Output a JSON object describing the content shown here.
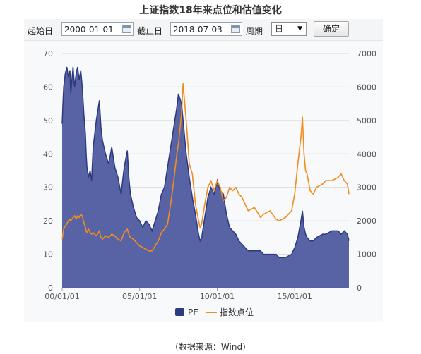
{
  "title": "上证指数18年来点位和估值变化",
  "controls": {
    "start_label": "起始日",
    "start_value": "2000-01-01",
    "end_label": "截止日",
    "end_value": "2018-07-03",
    "period_label": "周期",
    "period_value": "日",
    "confirm_label": "确定",
    "calendar_icon": "calendar-icon",
    "dropdown_icon": "chevron-down-icon"
  },
  "source_note": "（数据来源：Wind）",
  "colors": {
    "pe_fill": "#4e5b9f",
    "pe_line": "#2c3a7e",
    "index_line": "#f28c1f",
    "grid": "#d6d8dc",
    "axis_text": "#555555"
  },
  "chart_data": {
    "type": "area",
    "x_unit": "year",
    "x": [
      2000.0,
      2000.05,
      2000.1,
      2000.2,
      2000.3,
      2000.4,
      2000.5,
      2000.55,
      2000.7,
      2000.8,
      2000.9,
      2001.0,
      2001.1,
      2001.2,
      2001.3,
      2001.4,
      2001.5,
      2001.55,
      2001.6,
      2001.7,
      2001.8,
      2001.9,
      2002.0,
      2002.2,
      2002.4,
      2002.5,
      2002.6,
      2002.8,
      2003.0,
      2003.2,
      2003.4,
      2003.6,
      2003.8,
      2004.0,
      2004.2,
      2004.3,
      2004.4,
      2004.6,
      2004.8,
      2005.0,
      2005.2,
      2005.4,
      2005.6,
      2005.8,
      2006.0,
      2006.2,
      2006.4,
      2006.6,
      2006.8,
      2007.0,
      2007.2,
      2007.4,
      2007.5,
      2007.7,
      2007.8,
      2008.0,
      2008.2,
      2008.4,
      2008.6,
      2008.8,
      2008.9,
      2009.0,
      2009.2,
      2009.4,
      2009.6,
      2009.8,
      2010.0,
      2010.2,
      2010.4,
      2010.6,
      2010.8,
      2011.0,
      2011.2,
      2011.4,
      2011.6,
      2011.8,
      2012.0,
      2012.4,
      2012.8,
      2013.0,
      2013.4,
      2013.8,
      2014.0,
      2014.4,
      2014.8,
      2015.0,
      2015.2,
      2015.4,
      2015.5,
      2015.6,
      2015.7,
      2015.8,
      2016.0,
      2016.2,
      2016.4,
      2016.8,
      2017.0,
      2017.4,
      2017.8,
      2018.0,
      2018.2,
      2018.4,
      2018.5
    ],
    "series": [
      {
        "name": "PE",
        "axis": "left",
        "values": [
          49,
          55,
          60,
          64,
          66,
          63,
          65,
          58,
          66,
          60,
          64,
          66,
          62,
          65,
          60,
          52,
          46,
          40,
          36,
          33,
          35,
          32,
          42,
          50,
          56,
          48,
          44,
          40,
          37,
          42,
          36,
          33,
          28,
          36,
          41,
          33,
          28,
          24,
          21,
          20,
          18,
          20,
          19,
          17,
          20,
          23,
          28,
          30,
          36,
          42,
          48,
          54,
          58,
          55,
          50,
          40,
          33,
          27,
          22,
          16,
          14,
          15,
          21,
          27,
          30,
          28,
          32,
          29,
          28,
          22,
          18,
          17,
          16,
          14,
          13,
          12,
          11,
          11,
          11,
          10,
          10,
          10,
          9,
          9,
          10,
          12,
          15,
          20,
          23,
          18,
          16,
          15,
          14,
          14,
          15,
          16,
          16,
          17,
          17,
          16,
          17,
          16,
          14
        ]
      },
      {
        "name": "指数点位",
        "axis": "right",
        "values": [
          1450,
          1600,
          1750,
          1850,
          1900,
          2000,
          2050,
          2000,
          2100,
          2150,
          2050,
          2150,
          2100,
          2200,
          2150,
          1950,
          1800,
          1700,
          1650,
          1750,
          1650,
          1600,
          1650,
          1550,
          1700,
          1500,
          1450,
          1550,
          1500,
          1600,
          1550,
          1450,
          1400,
          1650,
          1750,
          1600,
          1500,
          1450,
          1350,
          1250,
          1200,
          1150,
          1100,
          1100,
          1250,
          1400,
          1650,
          1750,
          1900,
          2500,
          3200,
          4000,
          4300,
          5200,
          6100,
          5000,
          3700,
          3400,
          2500,
          2000,
          1800,
          1900,
          2500,
          3000,
          3200,
          2900,
          3200,
          3000,
          2600,
          2700,
          3000,
          2900,
          3000,
          2800,
          2700,
          2500,
          2300,
          2400,
          2100,
          2200,
          2300,
          2050,
          2000,
          2100,
          2300,
          2800,
          3700,
          4500,
          5100,
          4000,
          3500,
          3400,
          2900,
          2800,
          3000,
          3100,
          3200,
          3200,
          3300,
          3400,
          3200,
          3100,
          2800
        ]
      }
    ],
    "y_left": {
      "min": 0,
      "max": 70,
      "ticks": [
        "0",
        "10",
        "20",
        "30",
        "40",
        "50",
        "60",
        "70"
      ]
    },
    "y_right": {
      "min": 0,
      "max": 7000,
      "ticks": [
        "0",
        "1000",
        "2000",
        "3000",
        "4000",
        "5000",
        "6000",
        "7000"
      ]
    },
    "x_range": [
      2000.0,
      2018.5
    ],
    "x_ticks": [
      {
        "label": "00/01/01",
        "value": 2000.0
      },
      {
        "label": "05/01/01",
        "value": 2005.0
      },
      {
        "label": "10/01/01",
        "value": 2010.0
      },
      {
        "label": "15/01/01",
        "value": 2015.0
      }
    ],
    "legend": {
      "position": "bottom",
      "items": [
        "PE",
        "指数点位"
      ]
    },
    "grid": true
  }
}
